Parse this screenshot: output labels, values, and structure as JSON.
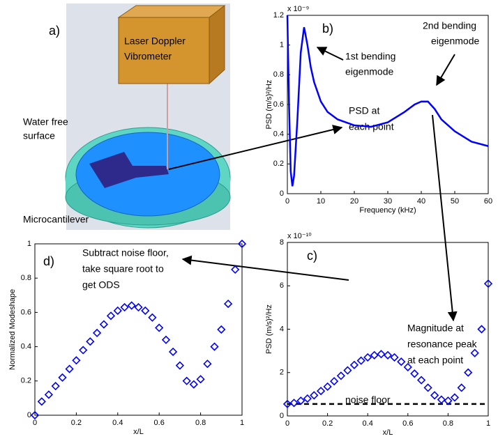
{
  "illustration": {
    "label": "a)",
    "instrument": [
      "Laser Doppler",
      "Vibrometer"
    ],
    "surface": [
      "Water free",
      "surface"
    ],
    "cantilever": "Microcantilever"
  },
  "chart_data": [
    {
      "type": "line",
      "label": "b)",
      "xlabel": "Frequency (kHz)",
      "ylabel": "PSD (m/s)²/Hz",
      "multiplier": "x 10⁻⁹",
      "notes": [
        [
          "1st bending",
          "eigenmode"
        ],
        [
          "2nd bending",
          "eigenmode"
        ],
        [
          "PSD at",
          "each point"
        ]
      ],
      "color": "#0000ff",
      "x": [
        0,
        0.5,
        1,
        1.5,
        2,
        3,
        4,
        5,
        6,
        7,
        8,
        10,
        12,
        15,
        20,
        25,
        30,
        35,
        38,
        40,
        42,
        44,
        46,
        50,
        55,
        60
      ],
      "values": [
        1.2,
        0.6,
        0.15,
        0.05,
        0.12,
        0.5,
        0.95,
        1.12,
        1.0,
        0.85,
        0.75,
        0.62,
        0.55,
        0.5,
        0.46,
        0.45,
        0.48,
        0.55,
        0.6,
        0.62,
        0.62,
        0.57,
        0.5,
        0.42,
        0.35,
        0.32
      ],
      "xlim": [
        0,
        60
      ],
      "xticks": [
        0,
        10,
        20,
        30,
        40,
        50,
        60
      ],
      "ylim": [
        0,
        1.2
      ],
      "yticks": [
        0,
        0.2,
        0.4,
        0.6,
        0.8,
        1,
        1.2
      ]
    },
    {
      "type": "scatter",
      "label": "c)",
      "xlabel": "x/L",
      "ylabel": "PSD (m/s)²/Hz",
      "multiplier": "x 10⁻¹⁰",
      "notes": [
        [
          "Magnitude at",
          "resonance peak",
          "at each point"
        ]
      ],
      "noise_label": "noise floor",
      "noise_floor": 0.55,
      "color": "#0000ff",
      "x": [
        0,
        0.033,
        0.067,
        0.1,
        0.133,
        0.167,
        0.2,
        0.233,
        0.267,
        0.3,
        0.333,
        0.367,
        0.4,
        0.433,
        0.467,
        0.5,
        0.533,
        0.567,
        0.6,
        0.633,
        0.667,
        0.7,
        0.733,
        0.767,
        0.8,
        0.833,
        0.867,
        0.9,
        0.933,
        0.967,
        1
      ],
      "values": [
        0.55,
        0.6,
        0.7,
        0.8,
        0.95,
        1.15,
        1.35,
        1.6,
        1.85,
        2.1,
        2.35,
        2.55,
        2.7,
        2.8,
        2.85,
        2.8,
        2.7,
        2.5,
        2.25,
        1.95,
        1.65,
        1.3,
        0.95,
        0.75,
        0.7,
        0.85,
        1.3,
        2.0,
        2.9,
        4.0,
        6.1
      ],
      "xlim": [
        0,
        1
      ],
      "xticks": [
        0,
        0.2,
        0.4,
        0.6,
        0.8,
        1
      ],
      "ylim": [
        0,
        8
      ],
      "yticks": [
        0,
        2,
        4,
        6,
        8
      ]
    },
    {
      "type": "scatter",
      "label": "d)",
      "xlabel": "x/L",
      "ylabel": "Normalized Modeshape",
      "notes": [
        [
          "Subtract noise floor,",
          "take square root to",
          "get ODS"
        ]
      ],
      "color": "#0000ff",
      "x": [
        0,
        0.033,
        0.067,
        0.1,
        0.133,
        0.167,
        0.2,
        0.233,
        0.267,
        0.3,
        0.333,
        0.367,
        0.4,
        0.433,
        0.467,
        0.5,
        0.533,
        0.567,
        0.6,
        0.633,
        0.667,
        0.7,
        0.733,
        0.767,
        0.8,
        0.833,
        0.867,
        0.9,
        0.933,
        0.967,
        1
      ],
      "values": [
        0,
        0.08,
        0.12,
        0.17,
        0.22,
        0.27,
        0.32,
        0.38,
        0.43,
        0.48,
        0.53,
        0.58,
        0.61,
        0.63,
        0.64,
        0.63,
        0.61,
        0.57,
        0.51,
        0.44,
        0.37,
        0.29,
        0.2,
        0.18,
        0.21,
        0.3,
        0.4,
        0.5,
        0.65,
        0.85,
        1.0
      ],
      "xlim": [
        0,
        1
      ],
      "xticks": [
        0,
        0.2,
        0.4,
        0.6,
        0.8,
        1
      ],
      "ylim": [
        0,
        1
      ],
      "yticks": [
        0,
        0.2,
        0.4,
        0.6,
        0.8,
        1
      ]
    }
  ]
}
